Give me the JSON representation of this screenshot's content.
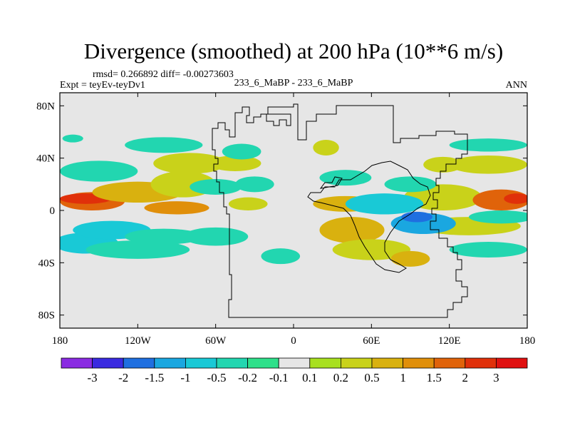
{
  "chart_data": {
    "type": "heatmap",
    "title": "Divergence (smoothed) at 200 hPa (10**6 m/s)",
    "stats_line": "rmsd= 0.266892 diff= -0.00273603",
    "left_label": "Expt = teyEv-teyDv1",
    "center_label": "233_6_MaBP - 233_6_MaBP",
    "right_label": "ANN",
    "xlim": [
      -180,
      180
    ],
    "ylim": [
      -90,
      90
    ],
    "x_ticks": [
      {
        "value": -180,
        "label": "180"
      },
      {
        "value": -120,
        "label": "120W"
      },
      {
        "value": -60,
        "label": "60W"
      },
      {
        "value": 0,
        "label": "0"
      },
      {
        "value": 60,
        "label": "60E"
      },
      {
        "value": 120,
        "label": "120E"
      },
      {
        "value": 180,
        "label": "180"
      }
    ],
    "y_ticks": [
      {
        "value": 80,
        "label": "80N"
      },
      {
        "value": 40,
        "label": "40N"
      },
      {
        "value": 0,
        "label": "0"
      },
      {
        "value": -40,
        "label": "40S"
      },
      {
        "value": -80,
        "label": "80S"
      }
    ],
    "colorbar": {
      "colors": [
        "#8a2be2",
        "#3a2ae0",
        "#1f6fe0",
        "#1aa7e0",
        "#19c9d6",
        "#22d6b0",
        "#2ee08a",
        "#e6e6e6",
        "#a8e020",
        "#c9d21a",
        "#d9b10f",
        "#e08f0a",
        "#e0630a",
        "#e0300a",
        "#e01010"
      ],
      "labels": [
        "-3",
        "-2",
        "-1.5",
        "-1",
        "-0.5",
        "-0.2",
        "-0.1",
        "0.1",
        "0.2",
        "0.5",
        "1",
        "1.5",
        "2",
        "3"
      ]
    },
    "background_color": "#e6e6e6",
    "anomaly_regions": [
      {
        "lon": -155,
        "lat": 7,
        "rlon": 25,
        "rlat": 7,
        "level": 12
      },
      {
        "lon": -160,
        "lat": 9,
        "rlon": 20,
        "rlat": 4,
        "level": 13
      },
      {
        "lon": -120,
        "lat": 14,
        "rlon": 35,
        "rlat": 8,
        "level": 10
      },
      {
        "lon": -85,
        "lat": 20,
        "rlon": 25,
        "rlat": 10,
        "level": 9
      },
      {
        "lon": -80,
        "lat": 36,
        "rlon": 28,
        "rlat": 8,
        "level": 9
      },
      {
        "lon": -45,
        "lat": 36,
        "rlon": 20,
        "rlat": 6,
        "level": 9
      },
      {
        "lon": -90,
        "lat": 2,
        "rlon": 25,
        "rlat": 5,
        "level": 11
      },
      {
        "lon": -35,
        "lat": 5,
        "rlon": 15,
        "rlat": 5,
        "level": 9
      },
      {
        "lon": 40,
        "lat": 5,
        "rlon": 25,
        "rlat": 6,
        "level": 10
      },
      {
        "lon": 45,
        "lat": -15,
        "rlon": 25,
        "rlat": 10,
        "level": 10
      },
      {
        "lon": 60,
        "lat": -30,
        "rlon": 30,
        "rlat": 8,
        "level": 9
      },
      {
        "lon": 90,
        "lat": -37,
        "rlon": 15,
        "rlat": 6,
        "level": 10
      },
      {
        "lon": 115,
        "lat": 10,
        "rlon": 30,
        "rlat": 10,
        "level": 9
      },
      {
        "lon": 160,
        "lat": 8,
        "rlon": 22,
        "rlat": 8,
        "level": 12
      },
      {
        "lon": 172,
        "lat": 9,
        "rlon": 10,
        "rlat": 4,
        "level": 13
      },
      {
        "lon": 135,
        "lat": -12,
        "rlon": 40,
        "rlat": 7,
        "level": 9
      },
      {
        "lon": 115,
        "lat": 35,
        "rlon": 15,
        "rlat": 6,
        "level": 9
      },
      {
        "lon": 150,
        "lat": 35,
        "rlon": 30,
        "rlat": 7,
        "level": 9
      },
      {
        "lon": 25,
        "lat": 48,
        "rlon": 10,
        "rlat": 6,
        "level": 9
      },
      {
        "lon": -160,
        "lat": -25,
        "rlon": 25,
        "rlat": 8,
        "level": 4
      },
      {
        "lon": -140,
        "lat": -15,
        "rlon": 30,
        "rlat": 7,
        "level": 4
      },
      {
        "lon": -120,
        "lat": -30,
        "rlon": 40,
        "rlat": 7,
        "level": 5
      },
      {
        "lon": -100,
        "lat": -20,
        "rlon": 30,
        "rlat": 6,
        "level": 5
      },
      {
        "lon": -60,
        "lat": -20,
        "rlon": 25,
        "rlat": 7,
        "level": 5
      },
      {
        "lon": -150,
        "lat": 30,
        "rlon": 30,
        "rlat": 8,
        "level": 5
      },
      {
        "lon": -100,
        "lat": 50,
        "rlon": 30,
        "rlat": 6,
        "level": 5
      },
      {
        "lon": -60,
        "lat": 18,
        "rlon": 20,
        "rlat": 6,
        "level": 5
      },
      {
        "lon": -30,
        "lat": 20,
        "rlon": 15,
        "rlat": 6,
        "level": 5
      },
      {
        "lon": -40,
        "lat": 45,
        "rlon": 15,
        "rlat": 6,
        "level": 5
      },
      {
        "lon": 40,
        "lat": 25,
        "rlon": 20,
        "rlat": 6,
        "level": 5
      },
      {
        "lon": 70,
        "lat": 5,
        "rlon": 30,
        "rlat": 8,
        "level": 4
      },
      {
        "lon": 100,
        "lat": -10,
        "rlon": 25,
        "rlat": 8,
        "level": 3
      },
      {
        "lon": 95,
        "lat": -5,
        "rlon": 12,
        "rlat": 4,
        "level": 2
      },
      {
        "lon": 90,
        "lat": 20,
        "rlon": 20,
        "rlat": 6,
        "level": 5
      },
      {
        "lon": 150,
        "lat": 50,
        "rlon": 30,
        "rlat": 5,
        "level": 5
      },
      {
        "lon": 160,
        "lat": -5,
        "rlon": 25,
        "rlat": 5,
        "level": 5
      },
      {
        "lon": 150,
        "lat": -30,
        "rlon": 30,
        "rlat": 6,
        "level": 5
      },
      {
        "lon": -10,
        "lat": -35,
        "rlon": 15,
        "rlat": 6,
        "level": 5
      },
      {
        "lon": -170,
        "lat": 55,
        "rlon": 8,
        "rlat": 3,
        "level": 5
      }
    ]
  }
}
